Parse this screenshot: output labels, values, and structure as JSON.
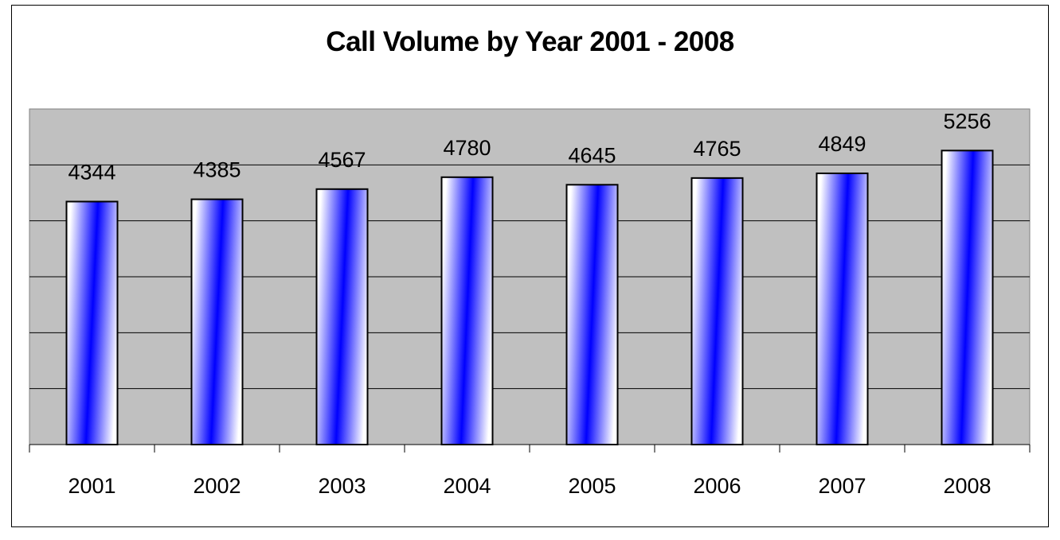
{
  "chart_data": {
    "type": "bar",
    "title": "Call Volume by Year 2001 - 2008",
    "categories": [
      "2001",
      "2002",
      "2003",
      "2004",
      "2005",
      "2006",
      "2007",
      "2008"
    ],
    "values": [
      4344,
      4385,
      4567,
      4780,
      4645,
      4765,
      4849,
      5256
    ],
    "ylim": [
      0,
      6000
    ],
    "grid": true,
    "legend": "none",
    "plot_background": "#C0C0C0",
    "bar_gradient": [
      "#0000FF",
      "#FFFFFF"
    ],
    "data_labels": true
  }
}
